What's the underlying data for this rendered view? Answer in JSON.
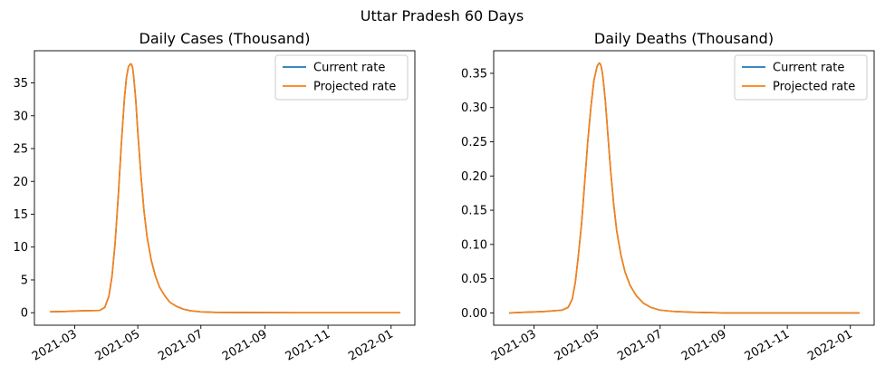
{
  "figure": {
    "suptitle": "Uttar Pradesh 60 Days"
  },
  "colors": {
    "current": "#1f77b4",
    "projected": "#ff7f0e"
  },
  "chart_data": [
    {
      "type": "line",
      "title": "Daily Cases (Thousand)",
      "xlabel": "",
      "ylabel": "",
      "xlim": [
        "2021-01-21",
        "2022-01-24"
      ],
      "ylim": [
        -1.9,
        39.9
      ],
      "yticks": [
        0,
        5,
        10,
        15,
        20,
        25,
        30,
        35
      ],
      "ytick_labels": [
        "0",
        "5",
        "10",
        "15",
        "20",
        "25",
        "30",
        "35"
      ],
      "xticks": [
        "2021-03-01",
        "2021-05-01",
        "2021-07-01",
        "2021-09-01",
        "2021-11-01",
        "2022-01-01"
      ],
      "xtick_labels": [
        "2021-03",
        "2021-05",
        "2021-07",
        "2021-09",
        "2021-11",
        "2022-01"
      ],
      "legend": {
        "placement": "upper right",
        "entries": [
          "Current rate",
          "Projected rate"
        ]
      },
      "grid": false,
      "series": [
        {
          "name": "Current rate",
          "color": "#1f77b4",
          "x": [
            "2021-02-05",
            "2021-02-20",
            "2021-03-08",
            "2021-03-25",
            "2021-03-30",
            "2021-04-03",
            "2021-04-06",
            "2021-04-09",
            "2021-04-12",
            "2021-04-15",
            "2021-04-18",
            "2021-04-20",
            "2021-04-22",
            "2021-04-24",
            "2021-04-25",
            "2021-04-26",
            "2021-04-27",
            "2021-04-29",
            "2021-05-01",
            "2021-05-04",
            "2021-05-07",
            "2021-05-10",
            "2021-05-14",
            "2021-05-18",
            "2021-05-22",
            "2021-05-27",
            "2021-06-01",
            "2021-06-07",
            "2021-06-14",
            "2021-06-21",
            "2021-06-30",
            "2021-07-15",
            "2021-08-01",
            "2021-09-01",
            "2021-10-01",
            "2021-11-01",
            "2021-12-01",
            "2022-01-10"
          ],
          "y": [
            0.15,
            0.2,
            0.3,
            0.35,
            0.8,
            2.5,
            5.5,
            10.5,
            17.5,
            25.5,
            32.5,
            35.8,
            37.5,
            37.9,
            37.8,
            37.3,
            36.0,
            32.5,
            27.5,
            21.0,
            15.5,
            11.5,
            8.0,
            5.6,
            3.9,
            2.6,
            1.6,
            1.0,
            0.55,
            0.3,
            0.15,
            0.06,
            0.04,
            0.02,
            0.01,
            0.01,
            0.0,
            0.0
          ]
        },
        {
          "name": "Projected rate",
          "color": "#ff7f0e",
          "x": [
            "2021-02-05",
            "2021-02-20",
            "2021-03-08",
            "2021-03-25",
            "2021-03-30",
            "2021-04-03",
            "2021-04-06",
            "2021-04-09",
            "2021-04-12",
            "2021-04-15",
            "2021-04-18",
            "2021-04-20",
            "2021-04-22",
            "2021-04-24",
            "2021-04-25",
            "2021-04-26",
            "2021-04-27",
            "2021-04-29",
            "2021-05-01",
            "2021-05-04",
            "2021-05-07",
            "2021-05-10",
            "2021-05-14",
            "2021-05-18",
            "2021-05-22",
            "2021-05-27",
            "2021-06-01",
            "2021-06-07",
            "2021-06-14",
            "2021-06-21",
            "2021-06-30",
            "2021-07-15",
            "2021-08-01",
            "2021-09-01",
            "2021-10-01",
            "2021-11-01",
            "2021-12-01",
            "2022-01-10"
          ],
          "y": [
            0.15,
            0.2,
            0.3,
            0.35,
            0.8,
            2.5,
            5.5,
            10.5,
            17.5,
            25.5,
            32.5,
            35.8,
            37.5,
            37.9,
            37.8,
            37.3,
            36.0,
            32.5,
            27.5,
            21.0,
            15.5,
            11.5,
            8.0,
            5.6,
            3.9,
            2.6,
            1.6,
            1.0,
            0.55,
            0.3,
            0.15,
            0.06,
            0.04,
            0.02,
            0.01,
            0.01,
            0.0,
            0.0
          ]
        }
      ]
    },
    {
      "type": "line",
      "title": "Daily Deaths (Thousand)",
      "xlabel": "",
      "ylabel": "",
      "xlim": [
        "2021-01-21",
        "2022-01-24"
      ],
      "ylim": [
        -0.018,
        0.383
      ],
      "yticks": [
        0,
        0.05,
        0.1,
        0.15,
        0.2,
        0.25,
        0.3,
        0.35
      ],
      "ytick_labels": [
        "0.00",
        "0.05",
        "0.10",
        "0.15",
        "0.20",
        "0.25",
        "0.30",
        "0.35"
      ],
      "xticks": [
        "2021-03-01",
        "2021-05-01",
        "2021-07-01",
        "2021-09-01",
        "2021-11-01",
        "2022-01-01"
      ],
      "xtick_labels": [
        "2021-03",
        "2021-05",
        "2021-07",
        "2021-09",
        "2021-11",
        "2022-01"
      ],
      "legend": {
        "placement": "upper right",
        "entries": [
          "Current rate",
          "Projected rate"
        ]
      },
      "grid": false,
      "series": [
        {
          "name": "Current rate",
          "color": "#1f77b4",
          "x": [
            "2021-02-05",
            "2021-02-20",
            "2021-03-10",
            "2021-03-28",
            "2021-04-03",
            "2021-04-07",
            "2021-04-10",
            "2021-04-13",
            "2021-04-16",
            "2021-04-19",
            "2021-04-22",
            "2021-04-25",
            "2021-04-28",
            "2021-05-01",
            "2021-05-03",
            "2021-05-04",
            "2021-05-05",
            "2021-05-06",
            "2021-05-07",
            "2021-05-09",
            "2021-05-11",
            "2021-05-14",
            "2021-05-17",
            "2021-05-20",
            "2021-05-24",
            "2021-05-28",
            "2021-06-02",
            "2021-06-08",
            "2021-06-15",
            "2021-06-22",
            "2021-07-01",
            "2021-07-15",
            "2021-08-01",
            "2021-09-01",
            "2021-10-01",
            "2021-11-01",
            "2021-12-01",
            "2022-01-10"
          ],
          "y": [
            0.0,
            0.001,
            0.002,
            0.004,
            0.008,
            0.02,
            0.045,
            0.085,
            0.13,
            0.19,
            0.25,
            0.3,
            0.34,
            0.36,
            0.365,
            0.364,
            0.36,
            0.352,
            0.34,
            0.31,
            0.27,
            0.21,
            0.16,
            0.12,
            0.085,
            0.06,
            0.04,
            0.025,
            0.014,
            0.008,
            0.004,
            0.002,
            0.001,
            0.0,
            0.0,
            0.0,
            0.0,
            0.0
          ]
        },
        {
          "name": "Projected rate",
          "color": "#ff7f0e",
          "x": [
            "2021-02-05",
            "2021-02-20",
            "2021-03-10",
            "2021-03-28",
            "2021-04-03",
            "2021-04-07",
            "2021-04-10",
            "2021-04-13",
            "2021-04-16",
            "2021-04-19",
            "2021-04-22",
            "2021-04-25",
            "2021-04-28",
            "2021-05-01",
            "2021-05-03",
            "2021-05-04",
            "2021-05-05",
            "2021-05-06",
            "2021-05-07",
            "2021-05-09",
            "2021-05-11",
            "2021-05-14",
            "2021-05-17",
            "2021-05-20",
            "2021-05-24",
            "2021-05-28",
            "2021-06-02",
            "2021-06-08",
            "2021-06-15",
            "2021-06-22",
            "2021-07-01",
            "2021-07-15",
            "2021-08-01",
            "2021-09-01",
            "2021-10-01",
            "2021-11-01",
            "2021-12-01",
            "2022-01-10"
          ],
          "y": [
            0.0,
            0.001,
            0.002,
            0.004,
            0.008,
            0.02,
            0.045,
            0.085,
            0.13,
            0.19,
            0.25,
            0.3,
            0.34,
            0.36,
            0.365,
            0.364,
            0.36,
            0.352,
            0.34,
            0.31,
            0.27,
            0.21,
            0.16,
            0.12,
            0.085,
            0.06,
            0.04,
            0.025,
            0.014,
            0.008,
            0.004,
            0.002,
            0.001,
            0.0,
            0.0,
            0.0,
            0.0,
            0.0
          ]
        }
      ]
    }
  ]
}
